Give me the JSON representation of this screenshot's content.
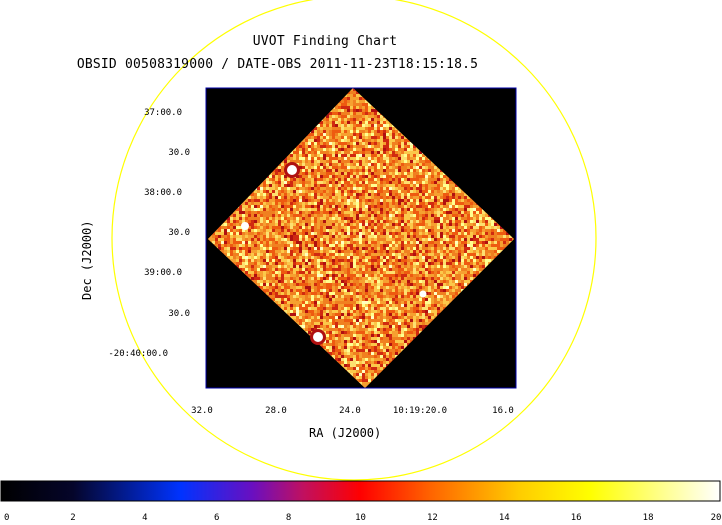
{
  "chart": {
    "title": "UVOT Finding Chart",
    "subtitle": "OBSID 00508319000 / DATE-OBS 2011-11-23T18:15:18.5",
    "xlabel": "RA (J2000)",
    "ylabel": "Dec (J2000)"
  },
  "chart_data": {
    "type": "heatmap",
    "title": "UVOT Finding Chart",
    "subtitle": "OBSID 00508319000 / DATE-OBS 2011-11-23T18:15:18.5",
    "xlabel": "RA (J2000)",
    "ylabel": "Dec (J2000)",
    "ra_tick_labels": [
      "32.0",
      "28.0",
      "24.0",
      "10:19:20.0",
      "16.0"
    ],
    "dec_tick_labels": [
      "37:00.0",
      "30.0",
      "38:00.0",
      "30.0",
      "39:00.0",
      "30.0",
      "-20:40:00.0"
    ],
    "colorbar": {
      "min": 0,
      "max": 20,
      "tick_labels": [
        "0",
        "2",
        "4",
        "6",
        "8",
        "10",
        "12",
        "14",
        "16",
        "18",
        "20"
      ],
      "colors": [
        "#000000",
        "#0000ff",
        "#ff0000",
        "#ffff00",
        "#ffffff"
      ]
    },
    "overlay": {
      "shape": "circle",
      "color": "#ffff00"
    }
  },
  "colors": {
    "background": "#ffffff",
    "frame": "#0000aa",
    "circle": "#ffff00",
    "image_fill": "#000000"
  }
}
